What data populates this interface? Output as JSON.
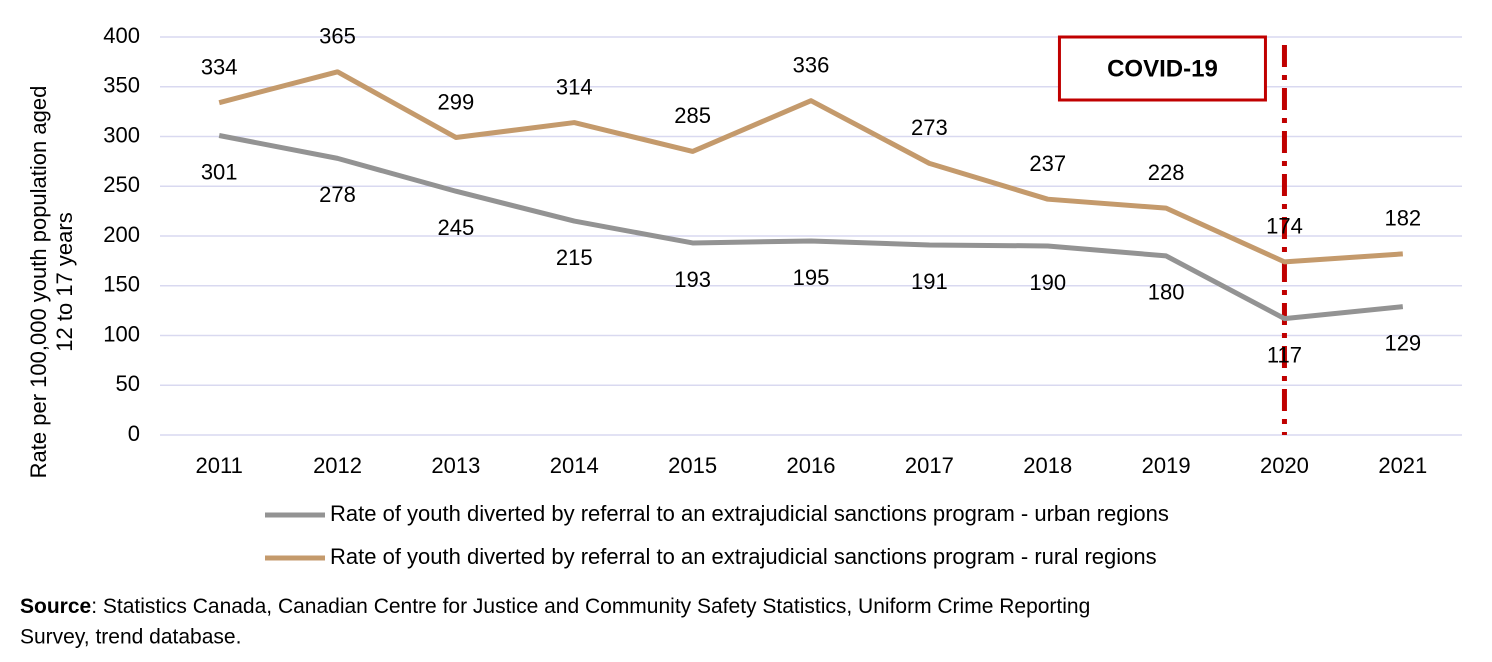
{
  "chart_data": {
    "type": "line",
    "y_label": [
      "Rate per 100,000 youth population aged",
      "12 to 17 years"
    ],
    "categories": [
      "2011",
      "2012",
      "2013",
      "2014",
      "2015",
      "2016",
      "2017",
      "2018",
      "2019",
      "2020",
      "2021"
    ],
    "series": [
      {
        "name": "Rate of youth diverted by referral to an extrajudicial sanctions program - urban regions",
        "color": "#939393",
        "label_side": "below",
        "values": [
          301,
          278,
          245,
          215,
          193,
          195,
          191,
          190,
          180,
          117,
          129
        ]
      },
      {
        "name": "Rate of youth diverted by referral to an extrajudicial sanctions program - rural regions",
        "color": "#c49a6c",
        "label_side": "above",
        "values": [
          334,
          365,
          299,
          314,
          285,
          336,
          273,
          237,
          228,
          174,
          182
        ]
      }
    ],
    "ylim": [
      0,
      400
    ],
    "yticks": [
      0,
      50,
      100,
      150,
      200,
      250,
      300,
      350,
      400
    ],
    "grid": true,
    "legend": "bottom",
    "annotations": [
      {
        "text": "COVID-19",
        "x": "2020",
        "color": "#c00000"
      }
    ],
    "source_label": "Source",
    "source_text": ": Statistics Canada, Canadian Centre for Justice and Community Safety Statistics, Uniform Crime Reporting",
    "source_text_2": "Survey, trend database."
  }
}
